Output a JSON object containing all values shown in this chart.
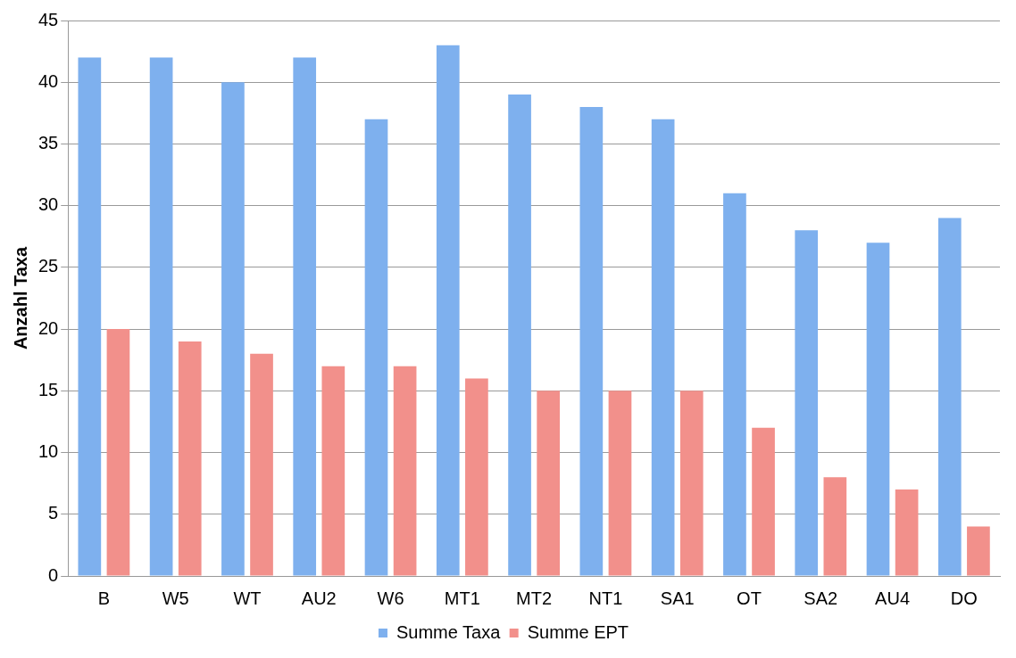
{
  "chart_data": {
    "type": "bar",
    "ylabel": "Anzahl Taxa",
    "categories": [
      "B",
      "W5",
      "WT",
      "AU2",
      "W6",
      "MT1",
      "MT2",
      "NT1",
      "SA1",
      "OT",
      "SA2",
      "AU4",
      "DO"
    ],
    "series": [
      {
        "name": "Summe Taxa",
        "color": "#7eb0ee",
        "values": [
          42,
          42,
          40,
          42,
          37,
          43,
          39,
          38,
          37,
          31,
          28,
          27,
          29
        ]
      },
      {
        "name": "Summe EPT",
        "color": "#f2908b",
        "values": [
          20,
          19,
          18,
          17,
          17,
          16,
          15,
          15,
          15,
          12,
          8,
          7,
          4
        ]
      }
    ],
    "ylim": [
      0,
      45
    ],
    "yticks": [
      0,
      5,
      10,
      15,
      20,
      25,
      30,
      35,
      40,
      45
    ],
    "grid": "y",
    "legend": "bottom"
  }
}
